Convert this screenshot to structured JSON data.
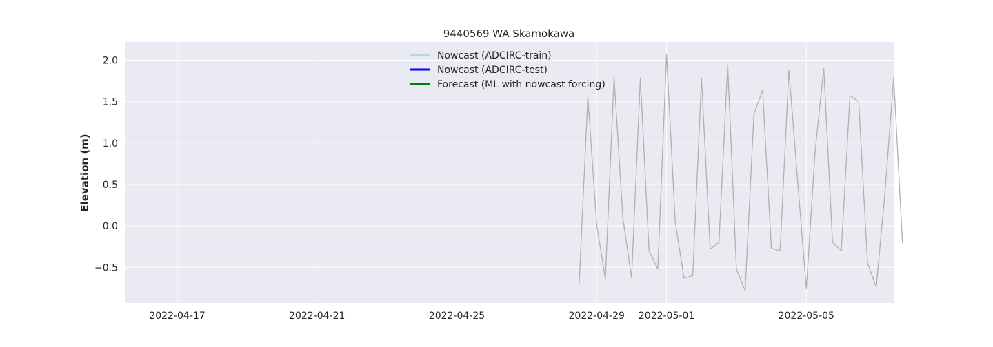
{
  "chart_data": {
    "type": "line",
    "title": "9440569 WA Skamokawa",
    "xlabel": "",
    "ylabel": "Elevation (m)",
    "xlim": [
      "2022-04-15T12:00",
      "2022-05-07T12:00"
    ],
    "ylim": [
      -0.93,
      2.22
    ],
    "x_ticks": [
      "2022-04-17",
      "2022-04-21",
      "2022-04-25",
      "2022-04-29",
      "2022-05-01",
      "2022-05-05"
    ],
    "y_ticks": [
      -0.5,
      0.0,
      0.5,
      1.0,
      1.5,
      2.0
    ],
    "y_tick_labels": [
      "−0.5",
      "0.0",
      "0.5",
      "1.0",
      "1.5",
      "2.0"
    ],
    "grid": true,
    "legend_position": "top-center",
    "series": [
      {
        "name": "",
        "role": "observed",
        "color": "#b0b0b0",
        "points": [
          [
            "2022-04-28T12:00",
            -0.7
          ],
          [
            "2022-04-28T18:00",
            1.56
          ],
          [
            "2022-04-29T00:00",
            0.02
          ],
          [
            "2022-04-29T06:00",
            -0.64
          ],
          [
            "2022-04-29T12:00",
            1.8
          ],
          [
            "2022-04-29T18:00",
            0.1
          ],
          [
            "2022-04-30T00:00",
            -0.63
          ],
          [
            "2022-04-30T06:00",
            1.78
          ],
          [
            "2022-04-30T12:00",
            -0.3
          ],
          [
            "2022-04-30T18:00",
            -0.52
          ],
          [
            "2022-05-01T00:00",
            2.07
          ],
          [
            "2022-05-01T06:00",
            0.05
          ],
          [
            "2022-05-01T12:00",
            -0.63
          ],
          [
            "2022-05-01T18:00",
            -0.6
          ],
          [
            "2022-05-02T00:00",
            1.78
          ],
          [
            "2022-05-02T06:00",
            -0.28
          ],
          [
            "2022-05-02T12:00",
            -0.2
          ],
          [
            "2022-05-02T18:00",
            1.95
          ],
          [
            "2022-05-03T00:00",
            -0.52
          ],
          [
            "2022-05-03T06:00",
            -0.78
          ],
          [
            "2022-05-03T12:00",
            1.35
          ],
          [
            "2022-05-03T18:00",
            1.64
          ],
          [
            "2022-05-04T00:00",
            -0.27
          ],
          [
            "2022-05-04T06:00",
            -0.3
          ],
          [
            "2022-05-04T12:00",
            1.88
          ],
          [
            "2022-05-04T18:00",
            0.55
          ],
          [
            "2022-05-05T00:00",
            -0.76
          ],
          [
            "2022-05-05T06:00",
            0.9
          ],
          [
            "2022-05-05T12:00",
            1.9
          ],
          [
            "2022-05-05T18:00",
            -0.2
          ],
          [
            "2022-05-06T00:00",
            -0.3
          ],
          [
            "2022-05-06T06:00",
            1.57
          ],
          [
            "2022-05-06T12:00",
            1.5
          ],
          [
            "2022-05-06T18:00",
            -0.45
          ],
          [
            "2022-05-07T00:00",
            -0.74
          ],
          [
            "2022-05-07T06:00",
            0.4
          ],
          [
            "2022-05-07T12:00",
            1.79
          ],
          [
            "2022-05-07T18:00",
            -0.2
          ]
        ]
      },
      {
        "name": "Nowcast (ADCIRC-train)",
        "color": "#add8e6",
        "points": []
      },
      {
        "name": "Nowcast (ADCIRC-test)",
        "color": "#0000ff",
        "points": []
      },
      {
        "name": "Forecast (ML with nowcast forcing)",
        "color": "#008000",
        "points": []
      }
    ]
  }
}
